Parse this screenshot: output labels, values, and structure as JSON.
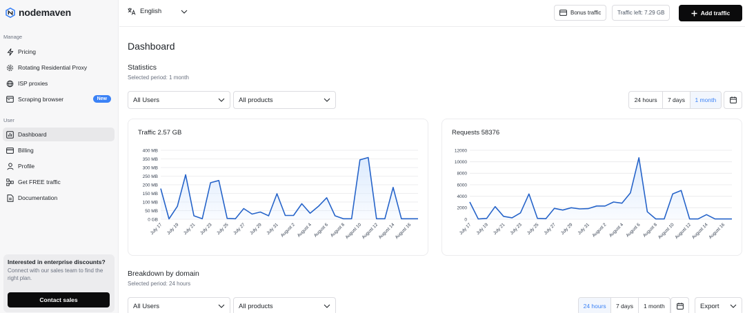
{
  "brand": {
    "name": "nodemaven"
  },
  "sidebar": {
    "manage_label": "Manage",
    "user_label": "User",
    "manage_items": [
      {
        "label": "Pricing",
        "icon": "bolt-icon"
      },
      {
        "label": "Rotating Residential Proxy",
        "icon": "gear-icon"
      },
      {
        "label": "ISP proxies",
        "icon": "globe-icon"
      },
      {
        "label": "Scraping browser",
        "icon": "browser-icon",
        "badge": "New"
      }
    ],
    "user_items": [
      {
        "label": "Dashboard",
        "icon": "chart-icon",
        "active": true
      },
      {
        "label": "Billing",
        "icon": "card-icon"
      },
      {
        "label": "Profile",
        "icon": "user-icon"
      },
      {
        "label": "Get FREE traffic",
        "icon": "share-icon"
      },
      {
        "label": "Documentation",
        "icon": "document-icon"
      }
    ],
    "promo": {
      "title": "Interested in enterprise discounts?",
      "text": "Connect with our sales team to find the right plan.",
      "button": "Contact sales"
    }
  },
  "topbar": {
    "language": "English",
    "bonus_label": "Bonus traffic",
    "traffic_left": "Traffic left: 7.29 GB",
    "add_traffic": "Add traffic"
  },
  "page": {
    "title": "Dashboard",
    "statistics": {
      "heading": "Statistics",
      "period": "Selected period: 1 month",
      "users_select": "All Users",
      "products_select": "All products",
      "ranges": [
        "24 hours",
        "7 days",
        "1 month"
      ],
      "selected_range": "1 month"
    },
    "breakdown": {
      "heading": "Breakdown by domain",
      "period": "Selected period: 24 hours",
      "users_select": "All Users",
      "products_select": "All products",
      "ranges": [
        "24 hours",
        "7 days",
        "1 month"
      ],
      "selected_range": "24 hours",
      "export_label": "Export"
    }
  },
  "colors": {
    "accent": "#3b82f6",
    "line": "#2563c9",
    "area": "#dbeafe"
  },
  "chart_data": [
    {
      "type": "area",
      "title": "Traffic 2.57 GB",
      "unit": "MB",
      "ylim": [
        0,
        400
      ],
      "yticks": [
        "0 GB",
        "50 MB",
        "100 MB",
        "150 MB",
        "200 MB",
        "250 MB",
        "300 MB",
        "350 MB",
        "400 MB"
      ],
      "xticks": [
        "July 17",
        "July 19",
        "July 21",
        "July 23",
        "July 25",
        "July 27",
        "July 29",
        "July 31",
        "August 2",
        "August 4",
        "August 6",
        "August 8",
        "August 10",
        "August 12",
        "August 14",
        "August 16"
      ],
      "x": [
        "July 17",
        "July 18",
        "July 19",
        "July 20",
        "July 21",
        "July 22",
        "July 23",
        "July 24",
        "July 25",
        "July 26",
        "July 27",
        "July 28",
        "July 29",
        "July 30",
        "July 31",
        "August 1",
        "August 2",
        "August 3",
        "August 4",
        "August 5",
        "August 6",
        "August 7",
        "August 8",
        "August 9",
        "August 10",
        "August 11",
        "August 12",
        "August 13",
        "August 14",
        "August 15",
        "August 16",
        "August 17"
      ],
      "values": [
        178,
        2,
        75,
        258,
        20,
        3,
        212,
        225,
        5,
        3,
        62,
        30,
        42,
        20,
        148,
        22,
        22,
        90,
        35,
        75,
        125,
        20,
        3,
        3,
        345,
        358,
        3,
        3,
        185,
        3,
        3,
        3
      ],
      "grid": true
    },
    {
      "type": "area",
      "title": "Requests 58376",
      "ylim": [
        0,
        12000
      ],
      "yticks": [
        "0",
        "2000",
        "4000",
        "6000",
        "8000",
        "10000",
        "12000"
      ],
      "xticks": [
        "July 17",
        "July 19",
        "July 21",
        "July 23",
        "July 25",
        "July 27",
        "July 29",
        "July 31",
        "August 2",
        "August 4",
        "August 6",
        "August 8",
        "August 10",
        "August 12",
        "August 14",
        "August 16"
      ],
      "x": [
        "July 17",
        "July 18",
        "July 19",
        "July 20",
        "July 21",
        "July 22",
        "July 23",
        "July 24",
        "July 25",
        "July 26",
        "July 27",
        "July 28",
        "July 29",
        "July 30",
        "July 31",
        "August 1",
        "August 2",
        "August 3",
        "August 4",
        "August 5",
        "August 6",
        "August 7",
        "August 8",
        "August 9",
        "August 10",
        "August 11",
        "August 12",
        "August 13",
        "August 14",
        "August 15",
        "August 16",
        "August 17"
      ],
      "values": [
        3000,
        50,
        150,
        2200,
        500,
        250,
        1100,
        4400,
        150,
        100,
        1900,
        1600,
        2000,
        1800,
        1850,
        2300,
        2300,
        3000,
        2800,
        4600,
        10700,
        1300,
        50,
        50,
        4400,
        5000,
        50,
        50,
        800,
        50,
        50,
        50
      ],
      "grid": true
    }
  ]
}
